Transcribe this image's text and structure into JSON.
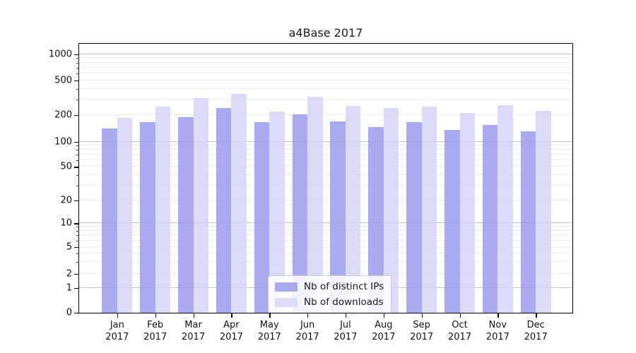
{
  "figure": {
    "title": "a4Base 2017"
  },
  "chart_data": {
    "type": "bar",
    "title": "a4Base 2017",
    "categories": [
      "Jan 2017",
      "Feb 2017",
      "Mar 2017",
      "Apr 2017",
      "May 2017",
      "Jun 2017",
      "Jul 2017",
      "Aug 2017",
      "Sep 2017",
      "Oct 2017",
      "Nov 2017",
      "Dec 2017"
    ],
    "x_tick_top_line": [
      "Jan",
      "Feb",
      "Mar",
      "Apr",
      "May",
      "Jun",
      "Jul",
      "Aug",
      "Sep",
      "Oct",
      "Nov",
      "Dec"
    ],
    "x_tick_bottom_line": "2017",
    "series": [
      {
        "name": "Nb of distinct IPs",
        "color": "#aaaaf2",
        "fill_rgba": "rgba(149,149,239,0.8)",
        "values": [
          140,
          165,
          190,
          240,
          165,
          205,
          170,
          145,
          165,
          135,
          155,
          130
        ]
      },
      {
        "name": "Nb of downloads",
        "color": "#dbdbf7",
        "fill_rgba": "rgba(210,210,246,0.8)",
        "values": [
          185,
          250,
          310,
          350,
          220,
          325,
          255,
          240,
          250,
          210,
          260,
          225
        ]
      }
    ],
    "yticks": [
      0,
      1,
      2,
      5,
      10,
      20,
      50,
      100,
      200,
      500,
      1000
    ],
    "minor_gridline_values": [
      3,
      4,
      6,
      7,
      8,
      9,
      30,
      40,
      60,
      70,
      80,
      90,
      300,
      400,
      600,
      700,
      800,
      900
    ],
    "emphasized_gridline_values": [
      1,
      10,
      100,
      1000
    ],
    "y_scale": "symlog",
    "ylim": [
      0,
      1300
    ],
    "xlabel": "",
    "ylabel": "",
    "grid": "horizontal",
    "legend_position": "lower-center",
    "legend_entries": [
      "Nb of distinct IPs",
      "Nb of downloads"
    ]
  }
}
